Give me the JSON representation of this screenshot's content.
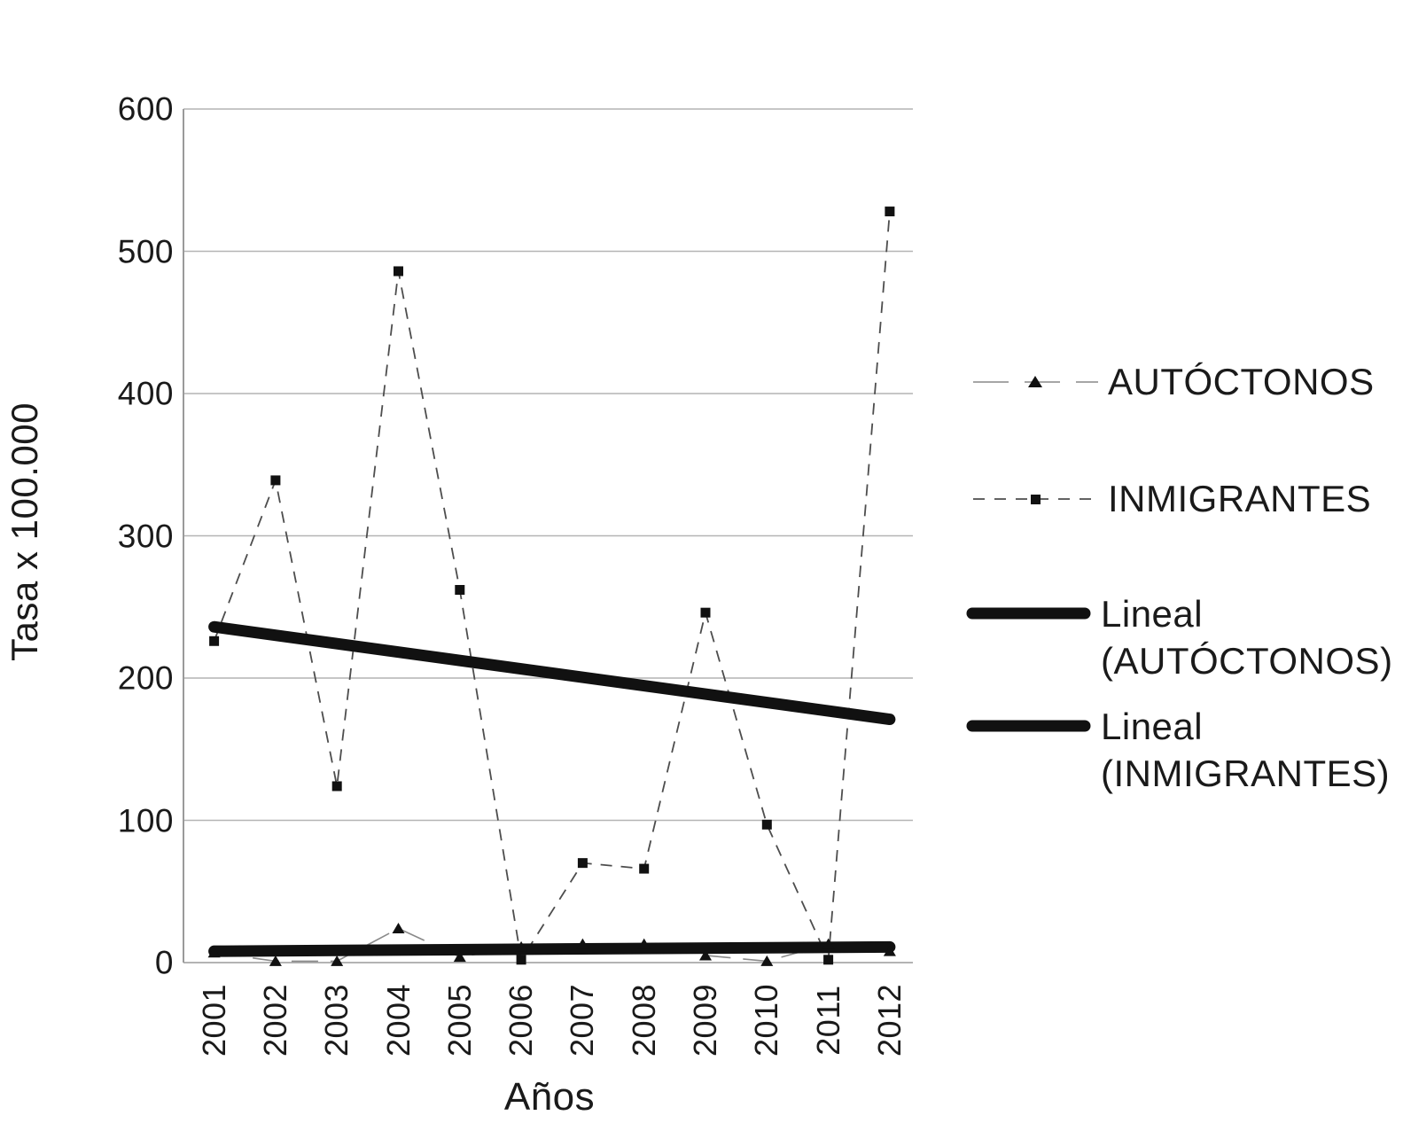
{
  "chart_data": {
    "type": "line",
    "title": "",
    "ylabel": "Tasa x 100.000",
    "xlabel": "Años",
    "categories": [
      "2001",
      "2002",
      "2003",
      "2004",
      "2005",
      "2006",
      "2007",
      "2008",
      "2009",
      "2010",
      "2011",
      "2012"
    ],
    "ylim": [
      0,
      600
    ],
    "yticks": [
      0,
      100,
      200,
      300,
      400,
      500,
      600
    ],
    "grid": true,
    "legend_position": "right",
    "series": [
      {
        "name": "AUTÓCTONOS",
        "type": "line",
        "marker": "triangle",
        "dash": "long",
        "values": [
          7,
          1,
          1,
          24,
          4,
          11,
          13,
          13,
          5,
          1,
          13,
          8
        ]
      },
      {
        "name": "INMIGRANTES",
        "type": "line",
        "marker": "square",
        "dash": "short",
        "values": [
          226,
          339,
          124,
          486,
          262,
          2,
          70,
          66,
          246,
          97,
          2,
          528
        ]
      },
      {
        "name": "Lineal (AUTÓCTONOS)",
        "type": "trend",
        "endpoints": [
          8,
          11
        ]
      },
      {
        "name": "Lineal (INMIGRANTES)",
        "type": "trend",
        "endpoints": [
          236,
          171
        ]
      }
    ]
  },
  "legend": {
    "entries": [
      {
        "line1": "AUTÓCTONOS",
        "line2": ""
      },
      {
        "line1": "INMIGRANTES",
        "line2": ""
      },
      {
        "line1": "Lineal",
        "line2": "(AUTÓCTONOS)"
      },
      {
        "line1": "Lineal",
        "line2": "(INMIGRANTES)"
      }
    ]
  },
  "colors": {
    "ink": "#1a1a1a",
    "grid": "#b4b4b4",
    "axis": "#9a9a9a",
    "series_thin": "#8a8a8a",
    "series_dash": "#4d4d4d",
    "trend": "#111111"
  }
}
